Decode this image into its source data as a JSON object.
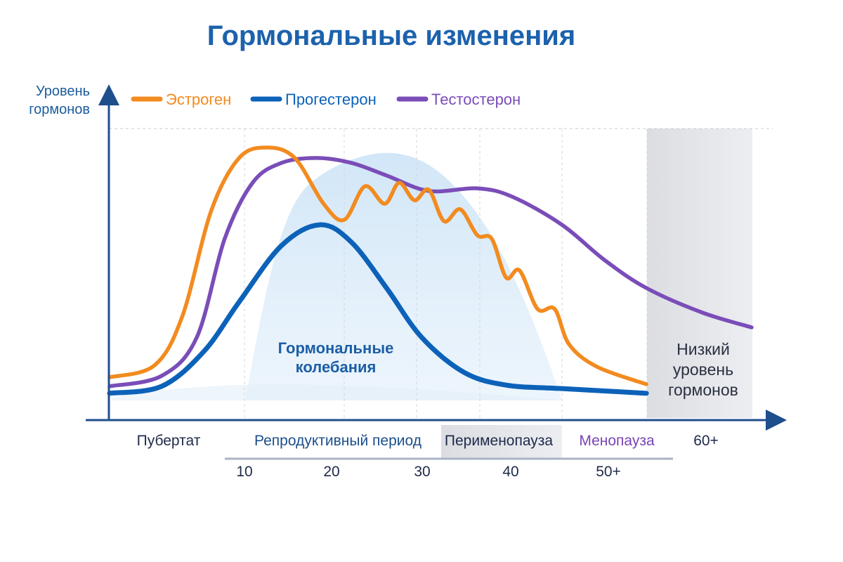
{
  "chart_data": {
    "type": "line",
    "title": "Гормональные изменения",
    "ylabel": "Уровень гормонов",
    "xlabel": "",
    "x_tick_labels": [
      "10",
      "20",
      "30",
      "40",
      "50+"
    ],
    "phases": [
      {
        "label": "Пубертат",
        "color": "#1e2a4a"
      },
      {
        "label": "Репродуктивный период",
        "color": "#1c4f8c"
      },
      {
        "label": "Перименопауза",
        "color": "#1e2a4a"
      },
      {
        "label": "Менопауза",
        "color": "#7a45b5"
      },
      {
        "label": "60+",
        "color": "#1e2a4a"
      }
    ],
    "annotations": {
      "fluctuations": [
        "Гормональные",
        "колебания"
      ],
      "low_level": [
        "Низкий",
        "уровень",
        "гормонов"
      ]
    },
    "xlim": [
      -5,
      67
    ],
    "ylim": [
      0,
      100
    ],
    "grid": true,
    "legend": "top",
    "series": [
      {
        "name": "Эстроген",
        "color": "#f28b20",
        "x": [
          -5,
          0,
          3.1,
          6.3,
          9.4,
          12.5,
          15.6,
          18.8,
          21.1,
          23.4,
          25.6,
          27.2,
          28.9,
          30.5,
          32.2,
          34.0,
          35.9,
          37.5,
          39.1,
          40.6,
          42.6,
          44.5,
          46.1,
          49.2,
          54.7
        ],
        "y": [
          14.7,
          18.8,
          35.7,
          71.8,
          89.9,
          93.5,
          89.9,
          74.2,
          68.7,
          80.2,
          74.2,
          81.4,
          75.4,
          79.0,
          68.2,
          72.3,
          63.4,
          62.2,
          48.9,
          51.3,
          38.1,
          38.1,
          26.0,
          18.3,
          12.3
        ]
      },
      {
        "name": "Прогестерон",
        "color": "#0c62b8",
        "x": [
          -5,
          0.8,
          5.5,
          9.4,
          14.1,
          18.4,
          21.9,
          25.8,
          29.7,
          34.4,
          39.1,
          45.3,
          54.7
        ],
        "y": [
          9.2,
          11.6,
          23.6,
          40.5,
          59.8,
          67.0,
          61.0,
          45.3,
          28.4,
          16.4,
          12.0,
          10.8,
          9.2
        ]
      },
      {
        "name": "Тестостерон",
        "color": "#7a4db8",
        "x": [
          -5,
          0.8,
          4.7,
          7.8,
          10.9,
          14.1,
          18,
          21.9,
          25.8,
          30.5,
          35.9,
          39.8,
          45.3,
          50,
          54.7,
          60.9,
          66.4
        ],
        "y": [
          11.6,
          15.2,
          28.4,
          62.2,
          81.4,
          88.2,
          89.9,
          88.2,
          83.9,
          78.6,
          79.5,
          76.6,
          67,
          55,
          45.3,
          36.9,
          31.8
        ]
      }
    ]
  }
}
